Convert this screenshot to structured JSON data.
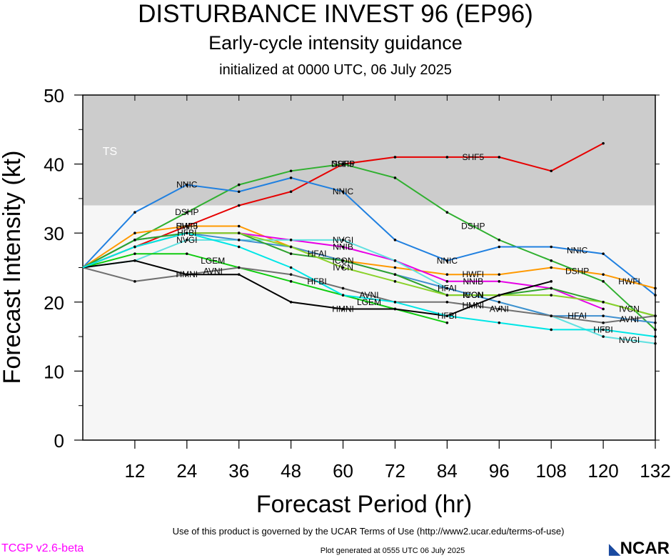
{
  "title": "DISTURBANCE INVEST 96 (EP96)",
  "subtitle": "Early-cycle intensity guidance",
  "init_line": "initialized at 0000 UTC, 06 July 2025",
  "terms": "Use of this product is governed by the UCAR Terms of Use (http://www2.ucar.edu/terms-of-use)",
  "plot_generated": "Plot generated at 0555 UTC   06 July 2025",
  "version": "TCGP v2.6-beta",
  "logo": "NCAR",
  "chart_data": {
    "type": "line",
    "xlabel": "Forecast Period (hr)",
    "ylabel": "Forecast Intensity (kt)",
    "xlim": [
      0,
      132
    ],
    "ylim": [
      0,
      50
    ],
    "xticks": [
      12,
      24,
      36,
      48,
      60,
      72,
      84,
      96,
      108,
      120,
      132
    ],
    "yticks": [
      0,
      10,
      20,
      30,
      40,
      50
    ],
    "bands": [
      {
        "label": "TS",
        "from": 34,
        "to": 50,
        "color": "#cccccc"
      },
      {
        "label": "",
        "from": 0,
        "to": 34,
        "color": "#f6f6f6"
      }
    ],
    "series": [
      {
        "name": "SHF5",
        "color": "#e60000",
        "x": [
          0,
          12,
          24,
          36,
          48,
          60,
          72,
          84,
          96,
          108,
          120
        ],
        "y": [
          25,
          28,
          31,
          34,
          36,
          40,
          41,
          41,
          41,
          39,
          43
        ],
        "label_at": [
          24,
          60,
          90
        ]
      },
      {
        "name": "DSHP",
        "color": "#30b030",
        "x": [
          0,
          12,
          24,
          36,
          48,
          60,
          72,
          84,
          96,
          108,
          120,
          132
        ],
        "y": [
          25,
          29,
          33,
          37,
          39,
          40,
          38,
          33,
          29,
          26,
          23,
          16
        ],
        "label_at": [
          24,
          60,
          90,
          114
        ]
      },
      {
        "name": "NNIC",
        "color": "#2080e0",
        "x": [
          0,
          12,
          24,
          36,
          48,
          60,
          72,
          84,
          96,
          108,
          120,
          132
        ],
        "y": [
          25,
          33,
          37,
          36,
          38,
          36,
          29,
          26,
          28,
          28,
          27,
          21
        ],
        "label_at": [
          24,
          60,
          84,
          114
        ]
      },
      {
        "name": "HWFI",
        "color": "#ff9900",
        "x": [
          0,
          12,
          24,
          36,
          48,
          60,
          72,
          84,
          96,
          108,
          120,
          132
        ],
        "y": [
          25,
          30,
          31,
          31,
          28,
          26,
          25,
          24,
          24,
          25,
          24,
          22
        ],
        "label_at": [
          24,
          90,
          126
        ]
      },
      {
        "name": "NNIB",
        "color": "#e600e6",
        "x": [
          0,
          12,
          24,
          36,
          48,
          60,
          72,
          84,
          96,
          108,
          120
        ],
        "y": [
          25,
          28,
          30,
          30,
          29,
          28,
          26,
          23,
          23,
          22,
          19
        ],
        "label_at": [
          60,
          90
        ]
      },
      {
        "name": "NVGI",
        "color": "#60e0e0",
        "x": [
          0,
          12,
          24,
          36,
          48,
          60,
          72,
          84,
          96,
          108,
          120,
          132
        ],
        "y": [
          25,
          26,
          29,
          29,
          29,
          29,
          26,
          22,
          20,
          18,
          15,
          14
        ],
        "label_at": [
          24,
          60,
          126
        ]
      },
      {
        "name": "HFAI",
        "color": "#4090d0",
        "x": [
          0,
          12,
          24,
          36,
          48,
          60,
          72,
          84,
          96,
          108,
          120,
          132
        ],
        "y": [
          25,
          29,
          30,
          29,
          28,
          26,
          24,
          22,
          20,
          18,
          18,
          17
        ],
        "label_at": [
          54,
          84,
          114
        ]
      },
      {
        "name": "ICON",
        "color": "#2ea22e",
        "x": [
          0,
          12,
          24,
          36,
          48,
          60,
          72,
          84,
          96,
          108,
          120,
          132
        ],
        "y": [
          25,
          29,
          30,
          30,
          27,
          26,
          24,
          21,
          21,
          22,
          20,
          18
        ],
        "label_at": [
          60,
          90
        ]
      },
      {
        "name": "IVCN",
        "color": "#8ad22a",
        "x": [
          0,
          12,
          24,
          36,
          48,
          60,
          72,
          84,
          96,
          108,
          120,
          132
        ],
        "y": [
          25,
          28,
          30,
          30,
          28,
          25,
          23,
          21,
          21,
          21,
          20,
          18
        ],
        "label_at": [
          60,
          90,
          126
        ]
      },
      {
        "name": "LGEM",
        "color": "#10cc10",
        "x": [
          0,
          12,
          24,
          36,
          48,
          60,
          72,
          84
        ],
        "y": [
          25,
          27,
          27,
          25,
          23,
          21,
          19,
          17
        ],
        "label_at": [
          30,
          66
        ]
      },
      {
        "name": "AVNI",
        "color": "#707070",
        "x": [
          0,
          12,
          24,
          36,
          48,
          60,
          72,
          84,
          96,
          108,
          120,
          132
        ],
        "y": [
          25,
          23,
          24,
          25,
          24,
          22,
          20,
          20,
          19,
          18,
          17,
          18
        ],
        "label_at": [
          30,
          66,
          96,
          126
        ]
      },
      {
        "name": "HMNI",
        "color": "#000000",
        "x": [
          0,
          12,
          24,
          36,
          48,
          60,
          72,
          84,
          96,
          108
        ],
        "y": [
          25,
          26,
          24,
          24,
          20,
          19,
          19,
          18,
          21,
          23
        ],
        "label_at": [
          24,
          60,
          90
        ]
      },
      {
        "name": "HFBI",
        "color": "#00e6e6",
        "x": [
          0,
          12,
          24,
          36,
          48,
          60,
          72,
          84,
          96,
          108,
          120,
          132
        ],
        "y": [
          25,
          28,
          30,
          28,
          25,
          21,
          20,
          18,
          17,
          16,
          16,
          15
        ],
        "label_at": [
          24,
          54,
          84,
          120
        ]
      }
    ]
  }
}
